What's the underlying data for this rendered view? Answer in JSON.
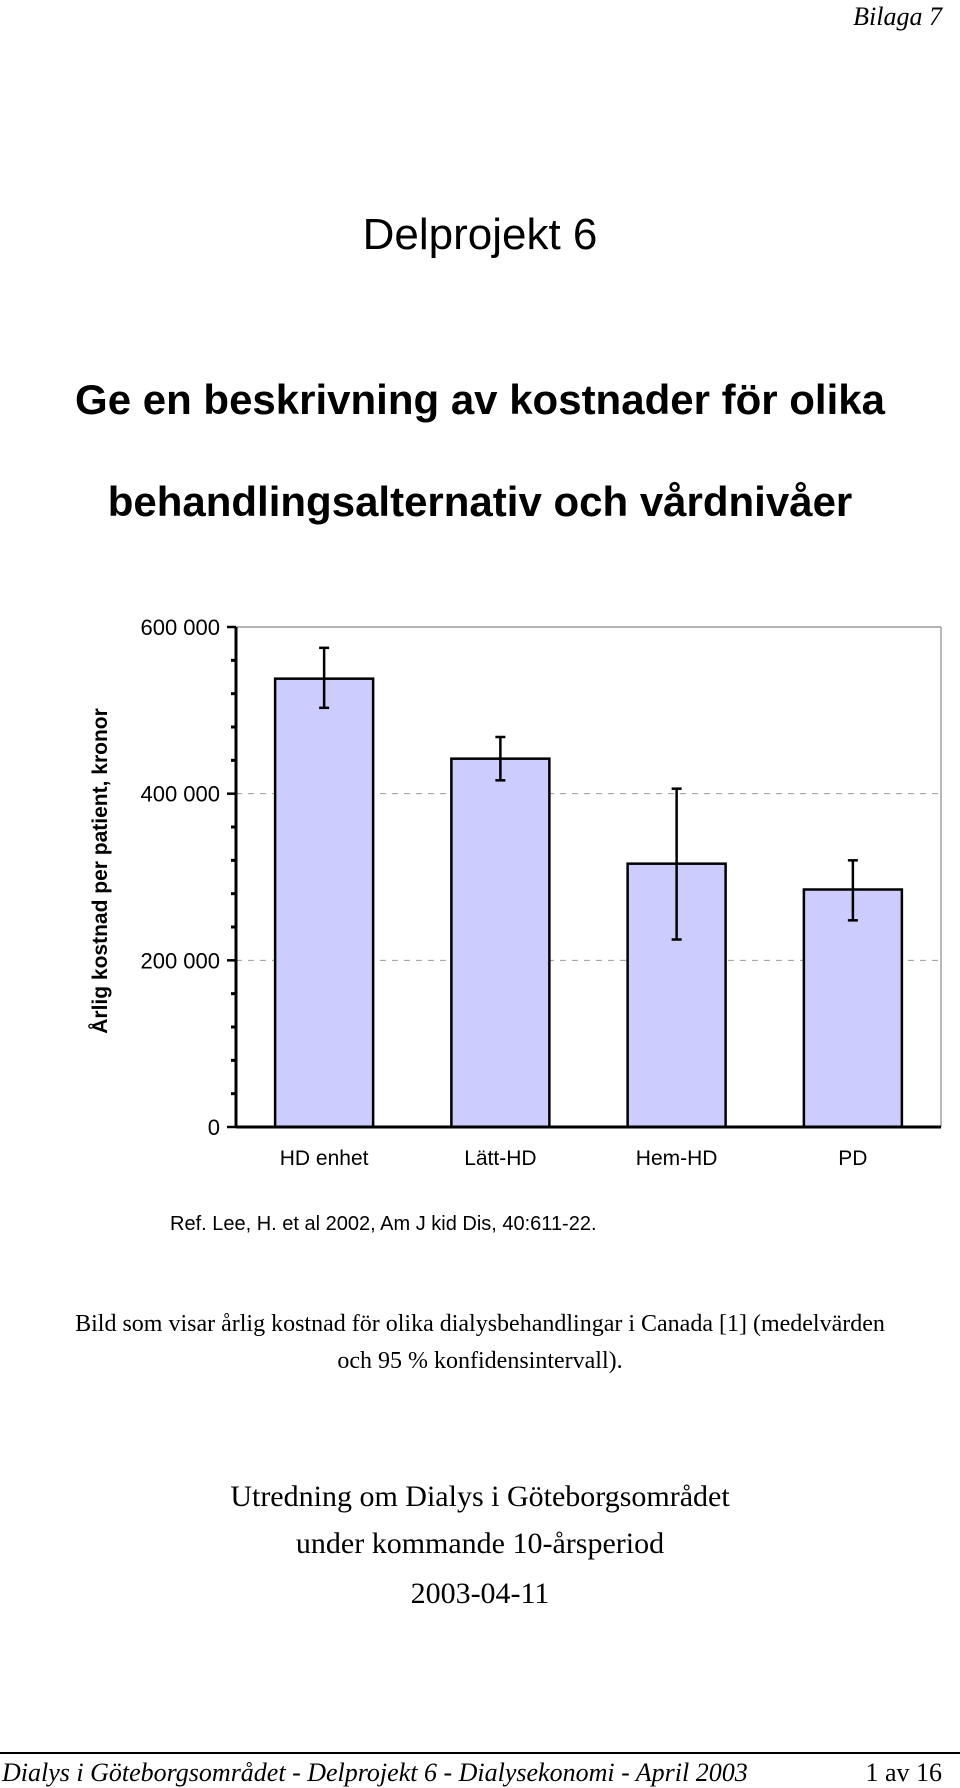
{
  "header": {
    "label": "Bilaga 7"
  },
  "document": {
    "title": "Delprojekt 6",
    "heading_line1": "Ge en beskrivning av kostnader för olika",
    "heading_line2": "behandlingsalternativ och vårdnivåer"
  },
  "chart_data": {
    "type": "bar",
    "title": "",
    "xlabel": "",
    "ylabel": "Årlig kostnad per patient, kronor",
    "ylim": [
      0,
      600000
    ],
    "y_ticks": [
      0,
      200000,
      400000,
      600000
    ],
    "y_tick_labels": [
      "0",
      "200 000",
      "400 000",
      "600 000"
    ],
    "categories": [
      "HD enhet",
      "Lätt-HD",
      "Hem-HD",
      "PD"
    ],
    "values": [
      538000,
      442000,
      316000,
      285000
    ],
    "error_low": [
      503000,
      416000,
      225000,
      248000
    ],
    "error_high": [
      575000,
      468000,
      406000,
      320000
    ],
    "bar_color": "#ccccff",
    "grid": "dashed at 200 000 and 400 000",
    "legend": "none"
  },
  "reference": "Ref. Lee, H. et al 2002, Am J kid Dis, 40:611-22.",
  "caption_line1": "Bild som visar årlig kostnad för olika dialysbehandlingar i Canada [1] (medelvärden",
  "caption_line2": "och 95 % konfidensintervall).",
  "info": {
    "line1": "Utredning om Dialys i Göteborgsområdet",
    "line2": "under kommande 10-årsperiod",
    "date": "2003-04-11"
  },
  "footer": {
    "text": "Dialys i Göteborgsområdet - Delprojekt 6 - Dialysekonomi - April 2003",
    "page": "1 av 16"
  }
}
